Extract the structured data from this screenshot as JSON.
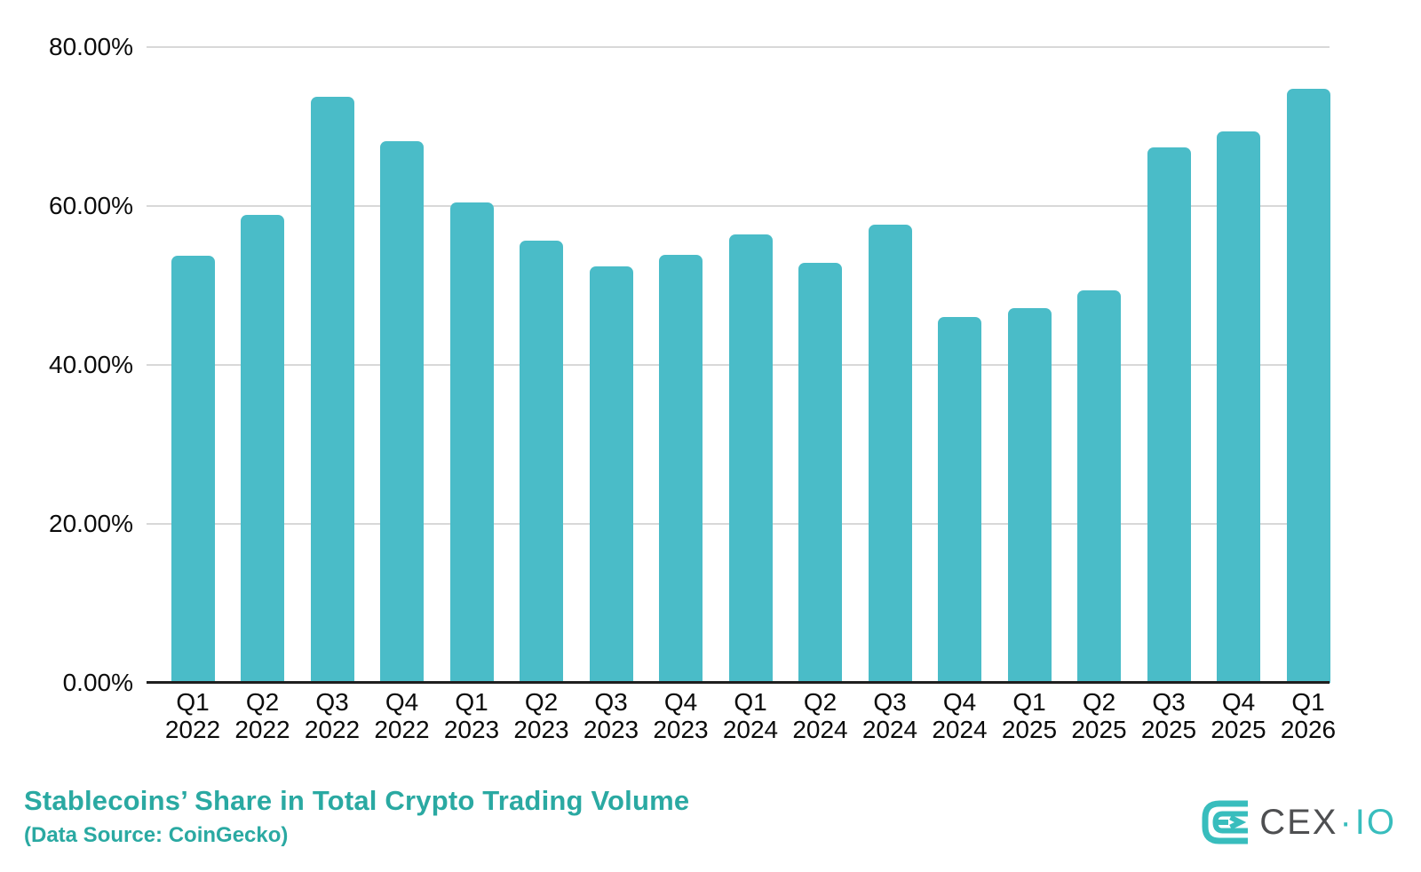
{
  "chart_data": {
    "type": "bar",
    "title": "Stablecoins’ Share in Total Crypto Trading Volume",
    "subtitle": "(Data Source: CoinGecko)",
    "categories": [
      {
        "quarter": "Q1",
        "year": "2022"
      },
      {
        "quarter": "Q2",
        "year": "2022"
      },
      {
        "quarter": "Q3",
        "year": "2022"
      },
      {
        "quarter": "Q4",
        "year": "2022"
      },
      {
        "quarter": "Q1",
        "year": "2023"
      },
      {
        "quarter": "Q2",
        "year": "2023"
      },
      {
        "quarter": "Q3",
        "year": "2023"
      },
      {
        "quarter": "Q4",
        "year": "2023"
      },
      {
        "quarter": "Q1",
        "year": "2024"
      },
      {
        "quarter": "Q2",
        "year": "2024"
      },
      {
        "quarter": "Q3",
        "year": "2024"
      },
      {
        "quarter": "Q4",
        "year": "2024"
      },
      {
        "quarter": "Q1",
        "year": "2025"
      },
      {
        "quarter": "Q2",
        "year": "2025"
      },
      {
        "quarter": "Q3",
        "year": "2025"
      },
      {
        "quarter": "Q4",
        "year": "2025"
      },
      {
        "quarter": "Q1",
        "year": "2026"
      }
    ],
    "values": [
      53.7,
      58.9,
      73.8,
      68.2,
      60.4,
      55.7,
      52.4,
      53.9,
      56.4,
      52.9,
      57.6,
      46.0,
      47.2,
      49.4,
      67.4,
      69.4,
      74.7
    ],
    "unit": "%",
    "ylim": [
      0,
      80
    ],
    "yticks": [
      {
        "value": 80,
        "label": "80.00%"
      },
      {
        "value": 60,
        "label": "60.00%"
      },
      {
        "value": 40,
        "label": "40.00%"
      },
      {
        "value": 20,
        "label": "20.00%"
      },
      {
        "value": 0,
        "label": "0.00%"
      }
    ],
    "grid": true,
    "legend": "none",
    "bar_color": "#4ABCC8"
  },
  "branding": {
    "logo_primary": "CEX",
    "logo_separator": "·",
    "logo_secondary": "IO"
  },
  "colors": {
    "background": "#FFFFFF",
    "bar": "#4ABCC8",
    "title_text": "#2AA9A2",
    "gridline": "#D8D8D8",
    "axis_line": "#1F1F1F",
    "axis_text": "#0B0B0B",
    "logo_teal": "#38BDBD",
    "logo_dark": "#4E4F51"
  }
}
